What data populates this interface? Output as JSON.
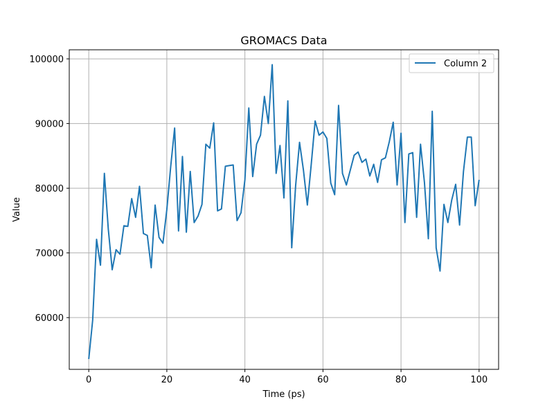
{
  "chart_data": {
    "type": "line",
    "title": "GROMACS Data",
    "xlabel": "Time (ps)",
    "ylabel": "Value",
    "xlim": [
      -5,
      105
    ],
    "ylim": [
      52000,
      101400
    ],
    "x_ticks": [
      0,
      20,
      40,
      60,
      80,
      100
    ],
    "y_ticks": [
      60000,
      70000,
      80000,
      90000,
      100000
    ],
    "grid": true,
    "legend_position": "top-right",
    "series": [
      {
        "name": "Column 2",
        "color": "#1f77b4",
        "x": [
          0,
          1,
          2,
          3,
          4,
          5,
          6,
          7,
          8,
          9,
          10,
          11,
          12,
          13,
          14,
          15,
          16,
          17,
          18,
          19,
          20,
          21,
          22,
          23,
          24,
          25,
          26,
          27,
          28,
          29,
          30,
          31,
          32,
          33,
          34,
          35,
          36,
          37,
          38,
          39,
          40,
          41,
          42,
          43,
          44,
          45,
          46,
          47,
          48,
          49,
          50,
          51,
          52,
          53,
          54,
          55,
          56,
          57,
          58,
          59,
          60,
          61,
          62,
          63,
          64,
          65,
          66,
          67,
          68,
          69,
          70,
          71,
          72,
          73,
          74,
          75,
          76,
          77,
          78,
          79,
          80,
          81,
          82,
          83,
          84,
          85,
          86,
          87,
          88,
          89,
          90,
          91,
          92,
          93,
          94,
          95,
          96,
          97,
          98,
          99,
          100
        ],
        "y": [
          53600,
          59600,
          72100,
          68100,
          82300,
          73700,
          67400,
          70500,
          69800,
          74200,
          74100,
          78400,
          75500,
          80300,
          73000,
          72700,
          67700,
          77400,
          72400,
          71500,
          76700,
          83400,
          89300,
          73400,
          84900,
          73200,
          82600,
          74700,
          75700,
          77500,
          86800,
          86200,
          90100,
          76500,
          76800,
          83400,
          83500,
          83600,
          75000,
          76200,
          81300,
          92400,
          81800,
          86800,
          88200,
          94200,
          90000,
          99100,
          82300,
          86600,
          78500,
          93500,
          70800,
          80400,
          87100,
          82800,
          77400,
          83700,
          90400,
          88200,
          88700,
          87700,
          80800,
          79000,
          92800,
          82300,
          80500,
          82800,
          85100,
          85600,
          84000,
          84500,
          81900,
          83700,
          80900,
          84400,
          84700,
          87200,
          90200,
          80500,
          88500,
          74700,
          85300,
          85500,
          75500,
          86800,
          80900,
          72200,
          91900,
          70800,
          67200,
          77500,
          74700,
          78200,
          80600,
          74300,
          82600,
          87900,
          87900,
          77300,
          81300
        ]
      }
    ]
  }
}
